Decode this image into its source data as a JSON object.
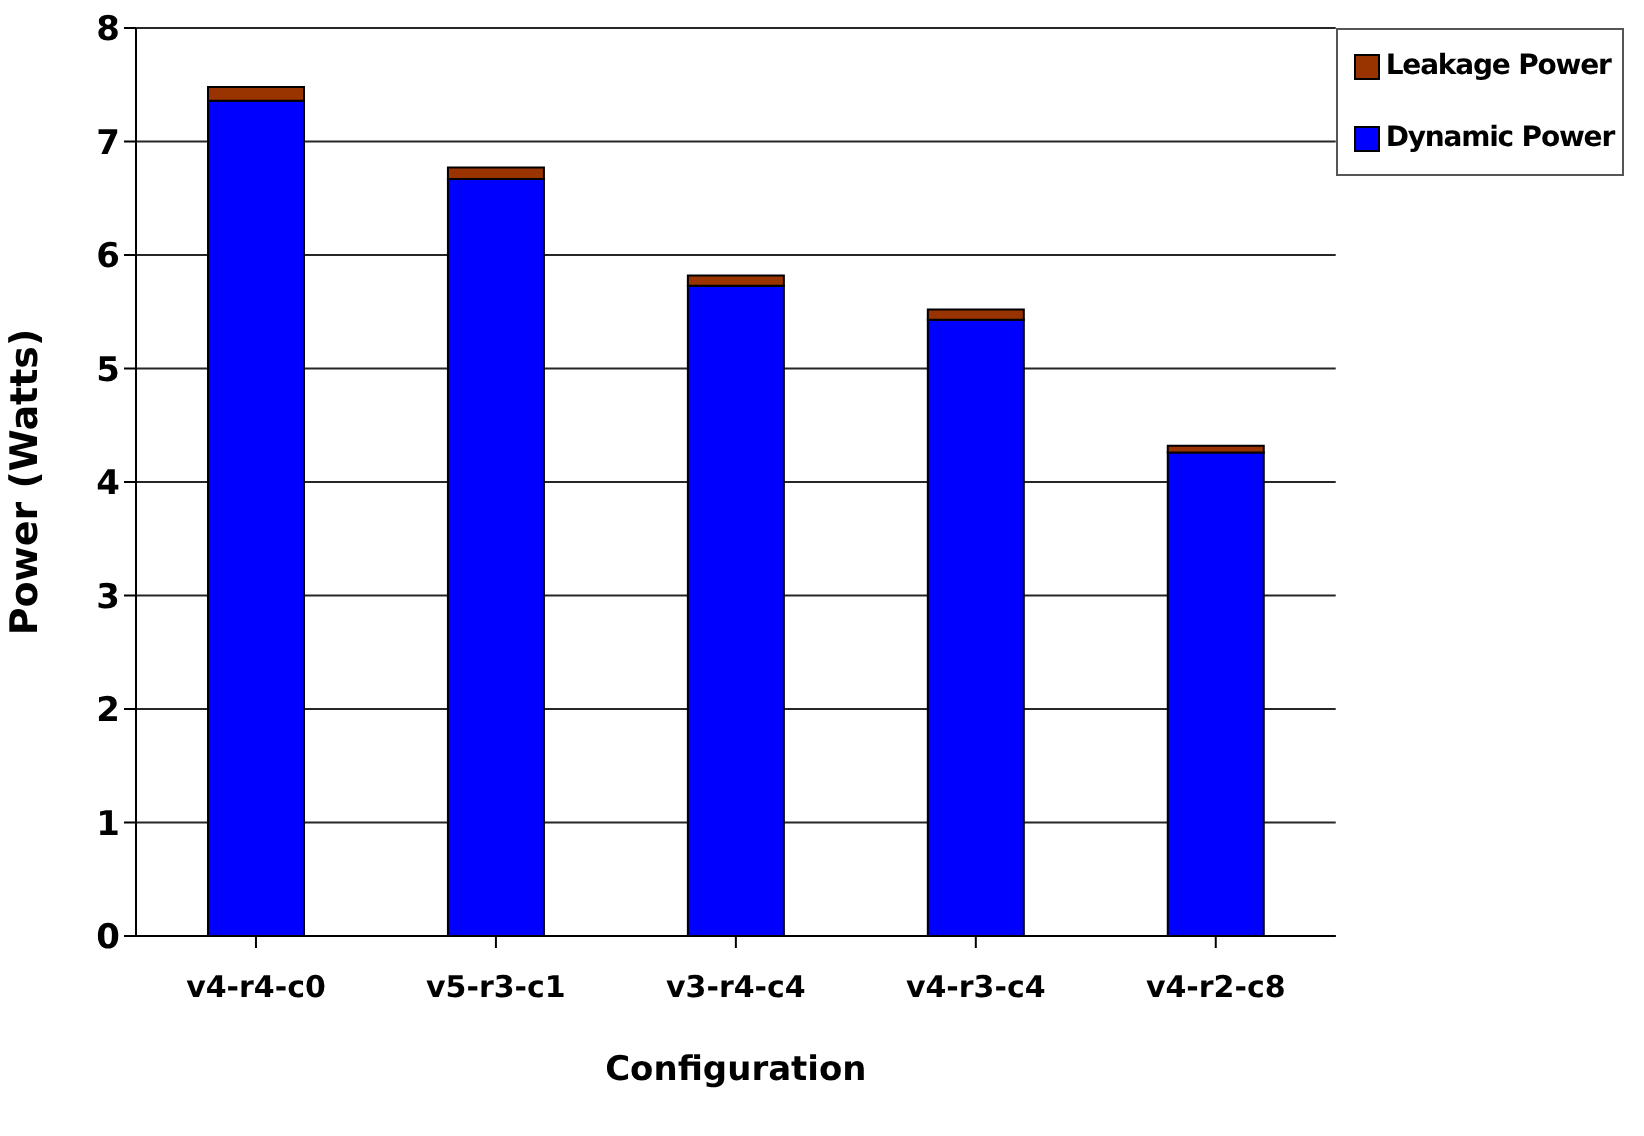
{
  "chart_data": {
    "type": "bar",
    "stacked": true,
    "xlabel": "Configuration",
    "ylabel": "Power (Watts)",
    "categories": [
      "v4-r4-c0",
      "v5-r3-c1",
      "v3-r4-c4",
      "v4-r3-c4",
      "v4-r2-c8"
    ],
    "series": [
      {
        "name": "Dynamic Power",
        "color": "#0000ff",
        "values": [
          7.36,
          6.67,
          5.73,
          5.43,
          4.26
        ]
      },
      {
        "name": "Leakage Power",
        "color": "#993300",
        "values": [
          0.12,
          0.1,
          0.09,
          0.09,
          0.06
        ]
      }
    ],
    "ylim": [
      0,
      8
    ],
    "yticks": [
      0,
      1,
      2,
      3,
      4,
      5,
      6,
      7,
      8
    ],
    "grid": "y",
    "legend": "top right"
  }
}
